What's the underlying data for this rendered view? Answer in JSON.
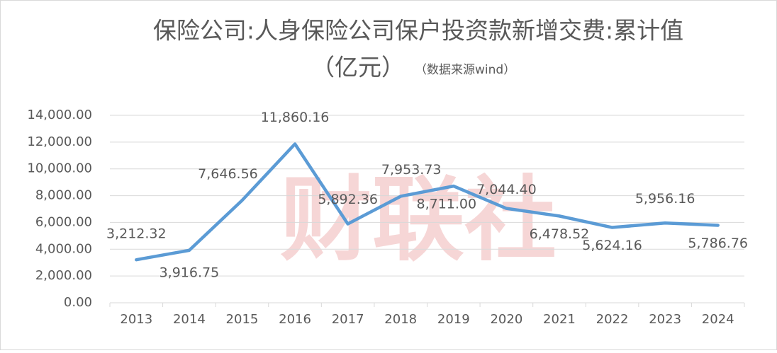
{
  "chart_data": {
    "type": "line",
    "title": "保险公司:人身保险公司保户投资款新增交费:累计值",
    "subtitle": "（亿元）",
    "source": "（数据来源wind）",
    "watermark": "财联社",
    "categories": [
      "2013",
      "2014",
      "2015",
      "2016",
      "2017",
      "2018",
      "2019",
      "2020",
      "2021",
      "2022",
      "2023",
      "2024"
    ],
    "series": [
      {
        "name": "累计值",
        "color": "#5b9bd5",
        "values": [
          3212.32,
          3916.75,
          7646.56,
          11860.16,
          5892.36,
          7953.73,
          8711.0,
          7044.4,
          6478.52,
          5624.16,
          5956.16,
          5786.76
        ],
        "value_labels": [
          "3,212.32",
          "3,916.75",
          "7,646.56",
          "11,860.16",
          "5,892.36",
          "7,953.73",
          "8,711.00",
          "7,044.40",
          "6,478.52",
          "5,624.16",
          "5,956.16",
          "5,786.76"
        ]
      }
    ],
    "ylim": [
      0,
      14000
    ],
    "yticks": [
      {
        "value": 0,
        "label": "0.00"
      },
      {
        "value": 2000,
        "label": "2,000.00"
      },
      {
        "value": 4000,
        "label": "4,000.00"
      },
      {
        "value": 6000,
        "label": "6,000.00"
      },
      {
        "value": 8000,
        "label": "8,000.00"
      },
      {
        "value": 10000,
        "label": "10,000.00"
      },
      {
        "value": 12000,
        "label": "12,000.00"
      },
      {
        "value": 14000,
        "label": "14,000.00"
      }
    ],
    "grid": true
  }
}
